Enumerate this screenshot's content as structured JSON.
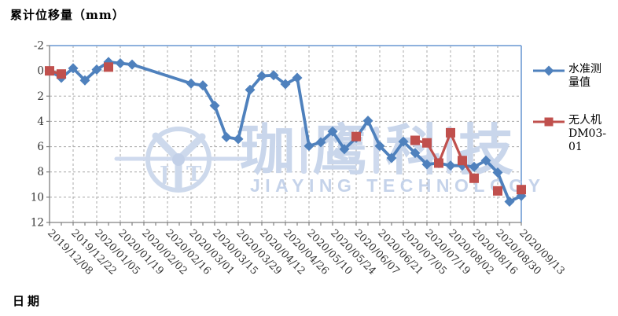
{
  "chart": {
    "y_axis_title": "累计位移量（mm）",
    "x_axis_title": "日期",
    "legend": [
      {
        "line1": "水准测",
        "line2": "量值",
        "series": "leveling"
      },
      {
        "line1": "无人机",
        "line2": "DM03-01",
        "series": "drone"
      }
    ],
    "watermark": {
      "cn_chars": [
        "珈",
        "鹰",
        "科",
        "技"
      ],
      "en_text": "JIAYING TECHNOLOGY",
      "logo_letters": [
        "J",
        "T"
      ]
    }
  },
  "chart_data": {
    "type": "line",
    "title": "",
    "xlabel": "日期",
    "ylabel": "累计位移量（mm）",
    "y_axis": {
      "min": -2,
      "max": 12,
      "tick_step": 2,
      "inverted": true
    },
    "y_tick_labels": [
      "-2",
      "0",
      "2",
      "4",
      "6",
      "8",
      "10",
      "12"
    ],
    "x_tick_labels": [
      "2019/12/08",
      "2019/12/22",
      "2020/01/05",
      "2020/01/19",
      "2020/02/02",
      "2020/02/16",
      "2020/03/01",
      "2020/03/15",
      "2020/03/29",
      "2020/04/12",
      "2020/04/26",
      "2020/05/10",
      "2020/05/24",
      "2020/06/07",
      "2020/06/21",
      "2020/07/05",
      "2020/07/19",
      "2020/08/02",
      "2020/08/16",
      "2020/08/30",
      "2020/09/13"
    ],
    "x_axis": {
      "major_tick_days": 14,
      "minor_tick_days": 7
    },
    "grid": true,
    "legend_position": "right",
    "colors": {
      "leveling": "#4F81BD",
      "drone": "#C0504D",
      "gridline": "#A8A8A8",
      "axis": "#808080",
      "plot_border": "#7EA6D8",
      "watermark": "#C9D6EB"
    },
    "series": [
      {
        "name": "水准测量值",
        "marker": "diamond",
        "color": "#4F81BD",
        "points": [
          {
            "date": "2019/12/08",
            "value": 0.0
          },
          {
            "date": "2019/12/15",
            "value": 0.55
          },
          {
            "date": "2019/12/22",
            "value": -0.2
          },
          {
            "date": "2019/12/29",
            "value": 0.75
          },
          {
            "date": "2020/01/05",
            "value": -0.1
          },
          {
            "date": "2020/01/12",
            "value": -0.7
          },
          {
            "date": "2020/01/19",
            "value": -0.6
          },
          {
            "date": "2020/01/26",
            "value": -0.5
          },
          {
            "date": "2020/03/01",
            "value": 1.0
          },
          {
            "date": "2020/03/08",
            "value": 1.15
          },
          {
            "date": "2020/03/15",
            "value": 2.75
          },
          {
            "date": "2020/03/22",
            "value": 5.25
          },
          {
            "date": "2020/03/29",
            "value": 5.4
          },
          {
            "date": "2020/04/05",
            "value": 1.5
          },
          {
            "date": "2020/04/12",
            "value": 0.4
          },
          {
            "date": "2020/04/19",
            "value": 0.35
          },
          {
            "date": "2020/04/26",
            "value": 1.05
          },
          {
            "date": "2020/05/03",
            "value": 0.55
          },
          {
            "date": "2020/05/10",
            "value": 5.95
          },
          {
            "date": "2020/05/17",
            "value": 5.65
          },
          {
            "date": "2020/05/24",
            "value": 4.8
          },
          {
            "date": "2020/05/31",
            "value": 6.2
          },
          {
            "date": "2020/06/07",
            "value": 5.3
          },
          {
            "date": "2020/06/14",
            "value": 3.95
          },
          {
            "date": "2020/06/21",
            "value": 5.95
          },
          {
            "date": "2020/06/28",
            "value": 6.9
          },
          {
            "date": "2020/07/05",
            "value": 5.6
          },
          {
            "date": "2020/07/12",
            "value": 6.5
          },
          {
            "date": "2020/07/19",
            "value": 7.4
          },
          {
            "date": "2020/07/26",
            "value": 7.3
          },
          {
            "date": "2020/08/02",
            "value": 7.5
          },
          {
            "date": "2020/08/09",
            "value": 7.5
          },
          {
            "date": "2020/08/16",
            "value": 7.6
          },
          {
            "date": "2020/08/23",
            "value": 7.1
          },
          {
            "date": "2020/08/30",
            "value": 8.05
          },
          {
            "date": "2020/09/06",
            "value": 10.35
          },
          {
            "date": "2020/09/13",
            "value": 9.9
          }
        ]
      },
      {
        "name": "无人机DM03-01",
        "marker": "square",
        "color": "#C0504D",
        "segments": [
          [
            {
              "date": "2019/12/08",
              "value": 0.0
            },
            {
              "date": "2019/12/15",
              "value": 0.25
            }
          ],
          [
            {
              "date": "2020/01/12",
              "value": -0.3
            }
          ],
          [
            {
              "date": "2020/06/07",
              "value": 5.2
            }
          ],
          [
            {
              "date": "2020/07/12",
              "value": 5.5
            },
            {
              "date": "2020/07/19",
              "value": 5.7
            },
            {
              "date": "2020/07/26",
              "value": 7.3
            },
            {
              "date": "2020/08/02",
              "value": 4.9
            },
            {
              "date": "2020/08/09",
              "value": 7.1
            },
            {
              "date": "2020/08/16",
              "value": 8.5
            }
          ],
          [
            {
              "date": "2020/08/30",
              "value": 9.5
            }
          ],
          [
            {
              "date": "2020/09/13",
              "value": 9.4
            }
          ]
        ]
      }
    ]
  }
}
